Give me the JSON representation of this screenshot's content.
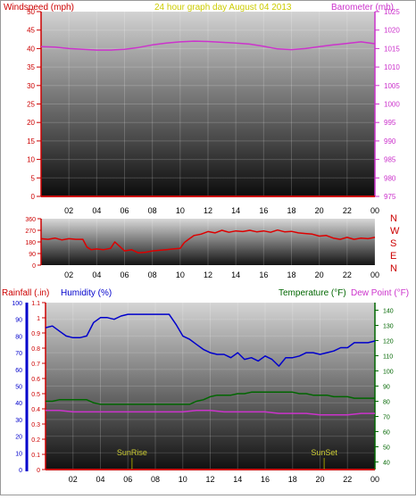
{
  "header": {
    "left_label": "Windspeed (mph)",
    "center_label": "24 hour graph day   August 04 2013",
    "right_label": "Barometer (mb)"
  },
  "bottom_header": {
    "rainfall_label": "Rainfall (.in)",
    "humidity_label": "Humidity (%)",
    "temperature_label": "Temperature (°F)",
    "dewpoint_label": "Dew Point (°F)"
  },
  "colors": {
    "windspeed": "#cc0000",
    "barometer": "#cc33cc",
    "header_center": "#cccc00",
    "wind_dir": "#dd0000",
    "rainfall": "#cc0000",
    "humidity": "#0000cc",
    "temperature": "#006600",
    "dewpoint": "#cc33cc",
    "sun_marker": "#999900"
  },
  "chart_data": [
    {
      "type": "line",
      "x_ticks": [
        "02",
        "04",
        "06",
        "08",
        "10",
        "12",
        "14",
        "16",
        "18",
        "20",
        "22",
        "00"
      ],
      "xlim": [
        0,
        24
      ],
      "left_axis": {
        "ticks": [
          "0",
          "5",
          "10",
          "15",
          "20",
          "25",
          "30",
          "35",
          "40",
          "45",
          "50"
        ],
        "ylim": [
          0,
          50
        ]
      },
      "right_axis": {
        "ticks": [
          "975",
          "980",
          "985",
          "990",
          "995",
          "1000",
          "1005",
          "1010",
          "1015",
          "1020",
          "1025"
        ],
        "ylim": [
          975,
          1025
        ]
      },
      "series": [
        {
          "axis": "right",
          "x": [
            0,
            1,
            2,
            3,
            4,
            5,
            6,
            7,
            8,
            9,
            10,
            11,
            12,
            13,
            14,
            15,
            16,
            17,
            18,
            19,
            20,
            21,
            22,
            23,
            24
          ],
          "values": [
            1015.5,
            1015.4,
            1015,
            1014.8,
            1014.6,
            1014.6,
            1014.8,
            1015.3,
            1016,
            1016.5,
            1016.8,
            1017,
            1016.9,
            1016.7,
            1016.5,
            1016.2,
            1015.6,
            1014.9,
            1014.7,
            1015,
            1015.5,
            1016,
            1016.4,
            1016.8,
            1016.3
          ]
        },
        {
          "axis": "left",
          "x": [
            0,
            24
          ],
          "values": [
            0,
            0
          ]
        }
      ]
    },
    {
      "type": "line",
      "x_ticks": [
        "02",
        "04",
        "06",
        "08",
        "10",
        "12",
        "14",
        "16",
        "18",
        "20",
        "22",
        "00"
      ],
      "xlim": [
        0,
        24
      ],
      "left_axis": {
        "ticks": [
          "0",
          "90",
          "180",
          "270",
          "360"
        ],
        "ylim": [
          0,
          360
        ]
      },
      "right_axis": {
        "ticks": [
          "N",
          "E",
          "S",
          "W",
          "N"
        ]
      },
      "series": [
        {
          "x": [
            0,
            0.5,
            1,
            1.5,
            2,
            2.5,
            3,
            3.3,
            3.6,
            4,
            4.5,
            5,
            5.3,
            5.6,
            6,
            6.5,
            7,
            7.5,
            8,
            8.5,
            9,
            9.5,
            10,
            10.3,
            10.6,
            11,
            11.5,
            12,
            12.5,
            13,
            13.5,
            14,
            14.5,
            15,
            15.5,
            16,
            16.5,
            17,
            17.5,
            18,
            18.5,
            19,
            19.5,
            20,
            20.5,
            21,
            21.5,
            22,
            22.5,
            23,
            23.5,
            24
          ],
          "values": [
            205,
            200,
            210,
            195,
            205,
            200,
            200,
            140,
            120,
            125,
            120,
            130,
            180,
            150,
            110,
            120,
            95,
            100,
            110,
            115,
            120,
            125,
            130,
            175,
            200,
            230,
            240,
            260,
            250,
            270,
            255,
            265,
            260,
            270,
            258,
            265,
            255,
            272,
            258,
            262,
            250,
            245,
            240,
            225,
            230,
            210,
            200,
            215,
            200,
            210,
            205,
            215
          ]
        }
      ]
    },
    {
      "type": "line",
      "x_ticks": [
        "02",
        "04",
        "06",
        "08",
        "10",
        "12",
        "14",
        "16",
        "18",
        "20",
        "22",
        "00"
      ],
      "xlim": [
        0,
        24
      ],
      "humidity_axis": {
        "ticks": [
          "0",
          "10",
          "20",
          "30",
          "40",
          "50",
          "60",
          "70",
          "80",
          "90",
          "100"
        ],
        "ylim": [
          0,
          100
        ]
      },
      "rainfall_axis": {
        "ticks": [
          "0",
          "0.1",
          "0.2",
          "0.3",
          "0.4",
          "0.5",
          "0.6",
          "0.7",
          "0.8",
          "0.9",
          "1",
          "1.1"
        ],
        "ylim": [
          0,
          1.1
        ]
      },
      "temperature_axis": {
        "ticks": [
          "40",
          "50",
          "60",
          "70",
          "80",
          "90",
          "100",
          "110",
          "120",
          "130",
          "140"
        ],
        "ylim": [
          35,
          145
        ]
      },
      "series": [
        {
          "axis": "humidity",
          "x": [
            0,
            0.5,
            1,
            1.5,
            2,
            2.5,
            3,
            3.5,
            4,
            4.5,
            5,
            5.5,
            6,
            6.5,
            7,
            7.5,
            8,
            8.5,
            9,
            9.5,
            10,
            10.5,
            11,
            11.5,
            12,
            12.5,
            13,
            13.5,
            14,
            14.5,
            15,
            15.5,
            16,
            16.5,
            17,
            17.5,
            18,
            18.5,
            19,
            19.5,
            20,
            20.5,
            21,
            21.5,
            22,
            22.5,
            23,
            23.5,
            24
          ],
          "values": [
            85,
            86,
            83,
            80,
            79,
            79,
            80,
            88,
            91,
            91,
            90,
            92,
            93,
            93,
            93,
            93,
            93,
            93,
            93,
            87,
            80,
            78,
            75,
            72,
            70,
            69,
            69,
            67,
            70,
            66,
            67,
            65,
            68,
            66,
            62,
            67,
            67,
            68,
            70,
            70,
            69,
            70,
            71,
            73,
            73,
            76,
            76,
            76,
            77
          ]
        },
        {
          "axis": "temperature",
          "x": [
            0,
            0.5,
            1,
            1.5,
            2,
            2.5,
            3,
            3.5,
            4,
            4.5,
            5,
            5.5,
            6,
            6.5,
            7,
            7.5,
            8,
            8.5,
            9,
            9.5,
            10,
            10.5,
            11,
            11.5,
            12,
            12.5,
            13,
            13.5,
            14,
            14.5,
            15,
            15.5,
            16,
            16.5,
            17,
            17.5,
            18,
            18.5,
            19,
            19.5,
            20,
            20.5,
            21,
            21.5,
            22,
            22.5,
            23,
            23.5,
            24
          ],
          "values": [
            80,
            80,
            81,
            81,
            81,
            81,
            81,
            79,
            78,
            78,
            78,
            78,
            78,
            78,
            78,
            78,
            78,
            78,
            78,
            78,
            78,
            78,
            80,
            81,
            83,
            84,
            84,
            84,
            85,
            85,
            86,
            86,
            86,
            86,
            86,
            86,
            86,
            85,
            85,
            84,
            84,
            84,
            83,
            83,
            83,
            82,
            82,
            82,
            82
          ]
        },
        {
          "axis": "temperature",
          "x": [
            0,
            1,
            2,
            3,
            4,
            5,
            6,
            7,
            8,
            9,
            10,
            11,
            12,
            13,
            14,
            15,
            16,
            17,
            18,
            19,
            20,
            21,
            22,
            23,
            24
          ],
          "values": [
            74,
            74,
            73,
            73,
            73,
            73,
            73,
            73,
            73,
            73,
            73,
            74,
            74,
            73,
            73,
            73,
            73,
            72,
            72,
            72,
            71,
            71,
            71,
            72,
            72
          ]
        },
        {
          "axis": "rainfall",
          "x": [
            0,
            24
          ],
          "values": [
            0,
            0
          ]
        }
      ],
      "annotations": [
        {
          "label": "SunRise",
          "x": 6.3
        },
        {
          "label": "SunSet",
          "x": 20.3
        }
      ]
    }
  ]
}
